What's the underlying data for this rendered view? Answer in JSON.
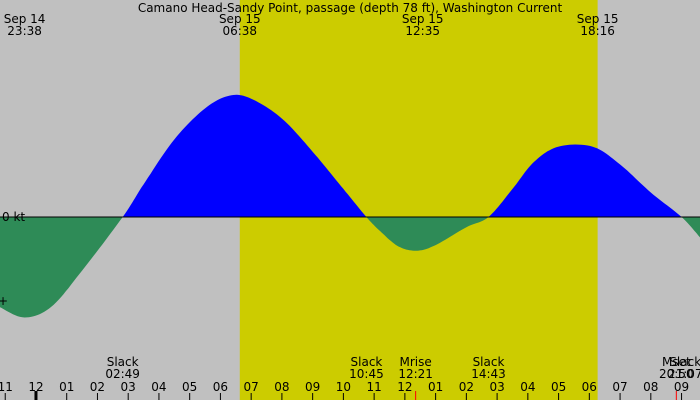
{
  "chart_data": {
    "type": "area",
    "title": "Camano Head-Sandy Point, passage (depth 78 ft), Washington Current",
    "zero_label": "0 kt",
    "lower_tick_label": "+",
    "colors": {
      "background": "#c0c0c0",
      "daylight": "#cccc00",
      "flood": "#0000ff",
      "ebb": "#2e8b57",
      "moon_marker": "#ff0000"
    },
    "top_labels": [
      {
        "hour": -0.37,
        "date": "Sep 14",
        "time": "23:38"
      },
      {
        "hour": 6.63,
        "date": "Sep 15",
        "time": "06:38"
      },
      {
        "hour": 12.58,
        "date": "Sep 15",
        "time": "12:35"
      },
      {
        "hour": 18.27,
        "date": "Sep 15",
        "time": "18:16"
      }
    ],
    "daylight": {
      "start_hour": 6.63,
      "end_hour": 18.27
    },
    "x_range_hours": [
      -1.17,
      21.6
    ],
    "y_range_kt": [
      -2.0,
      2.55
    ],
    "curve_points_hours_kt": [
      [
        -1.17,
        -1.77
      ],
      [
        -0.37,
        -1.97
      ],
      [
        0.5,
        -1.76
      ],
      [
        1.5,
        -1.05
      ],
      [
        2.82,
        0.0
      ],
      [
        3.5,
        0.64
      ],
      [
        4.5,
        1.52
      ],
      [
        5.5,
        2.13
      ],
      [
        6.3,
        2.38
      ],
      [
        7.0,
        2.32
      ],
      [
        8.0,
        1.93
      ],
      [
        9.0,
        1.28
      ],
      [
        10.0,
        0.55
      ],
      [
        10.75,
        0.0
      ],
      [
        11.2,
        -0.28
      ],
      [
        11.8,
        -0.58
      ],
      [
        12.4,
        -0.66
      ],
      [
        13.0,
        -0.55
      ],
      [
        14.0,
        -0.2
      ],
      [
        14.72,
        0.0
      ],
      [
        15.5,
        0.55
      ],
      [
        16.2,
        1.08
      ],
      [
        17.0,
        1.38
      ],
      [
        18.1,
        1.38
      ],
      [
        19.0,
        1.03
      ],
      [
        20.0,
        0.48
      ],
      [
        21.0,
        0.0
      ],
      [
        21.6,
        -0.4
      ]
    ],
    "hour_ticks": [
      "11",
      "12",
      "01",
      "02",
      "03",
      "04",
      "05",
      "06",
      "07",
      "08",
      "09",
      "10",
      "11",
      "12",
      "01",
      "02",
      "03",
      "04",
      "05",
      "06",
      "07",
      "08",
      "09"
    ],
    "hour_tick_start": -1,
    "midnight_tick_hour": 0,
    "events": [
      {
        "hour": 2.82,
        "label": "Slack",
        "time": "02:49"
      },
      {
        "hour": 10.75,
        "label": "Slack",
        "time": "10:45"
      },
      {
        "hour": 12.35,
        "label": "Mrise",
        "time": "12:21"
      },
      {
        "hour": 14.72,
        "label": "Slack",
        "time": "14:43"
      },
      {
        "hour": 20.83,
        "label": "Mset",
        "time": "20:50"
      },
      {
        "hour": 21.12,
        "label": "Slack",
        "time": "21:07"
      }
    ],
    "moon_markers_hours": [
      12.35,
      20.83
    ]
  }
}
